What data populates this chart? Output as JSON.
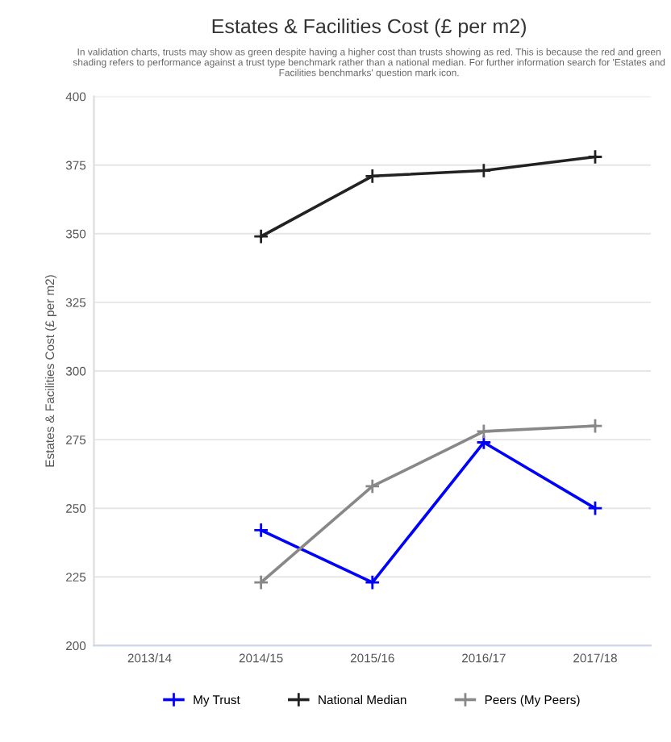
{
  "chart_data": {
    "type": "line",
    "title": "Estates & Facilities Cost (£ per m2)",
    "subtitle": "In validation charts, trusts may show as green despite having a higher cost than trusts showing as red. This is because the red and green shading refers to performance against a trust type benchmark rather than a national median. For further information search for 'Estates and Facilities benchmarks' question mark icon.",
    "ylabel": "Estates & Facilities Cost (£ per m2)",
    "categories": [
      "2013/14",
      "2014/15",
      "2015/16",
      "2016/17",
      "2017/18"
    ],
    "series": [
      {
        "name": "My Trust",
        "color": "#0000ff",
        "values": [
          null,
          242,
          223,
          274,
          250
        ]
      },
      {
        "name": "National Median",
        "color": "#222222",
        "values": [
          null,
          349,
          371,
          373,
          378
        ]
      },
      {
        "name": "Peers (My Peers)",
        "color": "#888888",
        "values": [
          null,
          223,
          258,
          278,
          280
        ]
      }
    ],
    "ylim": [
      200,
      400
    ],
    "yticks": [
      200,
      225,
      250,
      275,
      300,
      325,
      350,
      375,
      400
    ],
    "grid": "y",
    "legend": "bottom",
    "marker": "cross",
    "line_style": "solid"
  }
}
